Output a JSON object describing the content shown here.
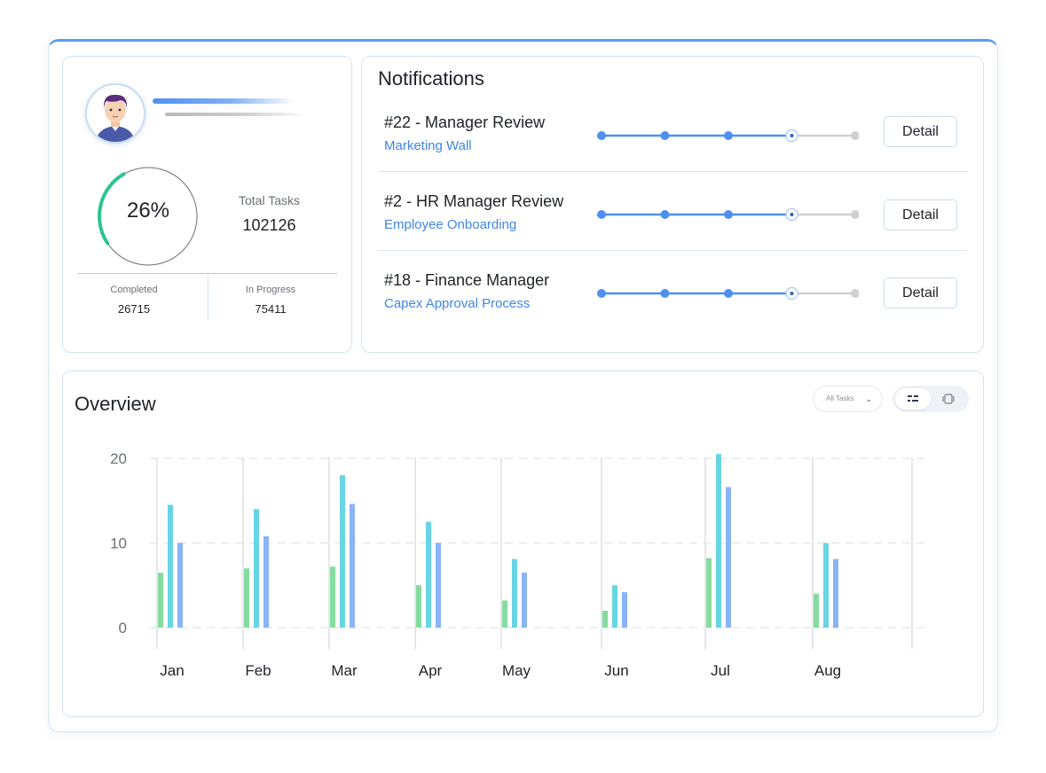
{
  "profile": {
    "progress_percent": 26,
    "progress_label": "26%",
    "total_tasks_label": "Total Tasks",
    "total_tasks_value": "102126",
    "completed_label": "Completed",
    "completed_value": "26715",
    "in_progress_label": "In Progress",
    "in_progress_value": "75411"
  },
  "notifications": {
    "title": "Notifications",
    "items": [
      {
        "heading": "#22 - Manager Review",
        "subtitle": "Marketing Wall",
        "step_current": 4,
        "step_total": 5,
        "button": "Detail"
      },
      {
        "heading": "#2 - HR Manager Review",
        "subtitle": "Employee Onboarding",
        "step_current": 4,
        "step_total": 5,
        "button": "Detail"
      },
      {
        "heading": "#18 - Finance Manager",
        "subtitle": "Capex Approval Process",
        "step_current": 4,
        "step_total": 5,
        "button": "Detail"
      }
    ]
  },
  "overview": {
    "title": "Overview",
    "filter_label": "All Tasks",
    "view_toggle": {
      "active": "list-view-icon",
      "inactive": "card-view-icon"
    }
  },
  "chart_data": {
    "type": "bar",
    "categories": [
      "Jan",
      "Feb",
      "Mar",
      "Apr",
      "May",
      "Jun",
      "Jul",
      "Aug"
    ],
    "series": [
      {
        "color": "#86dca0",
        "values": [
          6.5,
          7,
          7.2,
          5,
          3.2,
          2,
          8.2,
          4
        ]
      },
      {
        "color": "#67d5e3",
        "values": [
          14.5,
          14,
          18,
          12.5,
          8.1,
          5,
          20.5,
          10
        ]
      },
      {
        "color": "#8ab4f8",
        "values": [
          10,
          10.8,
          14.6,
          10,
          6.5,
          4.2,
          16.6,
          8.1
        ]
      }
    ],
    "yticks": [
      0,
      10,
      20
    ],
    "ylim": [
      0,
      20.5
    ],
    "grid": true,
    "legend": "none",
    "xlabel": "",
    "ylabel": ""
  },
  "colors": {
    "accent": "#3e86ea",
    "progress_ring": "#2cc58f",
    "track_done": "#4f8ff0",
    "track_pending": "#d0d0d0"
  }
}
